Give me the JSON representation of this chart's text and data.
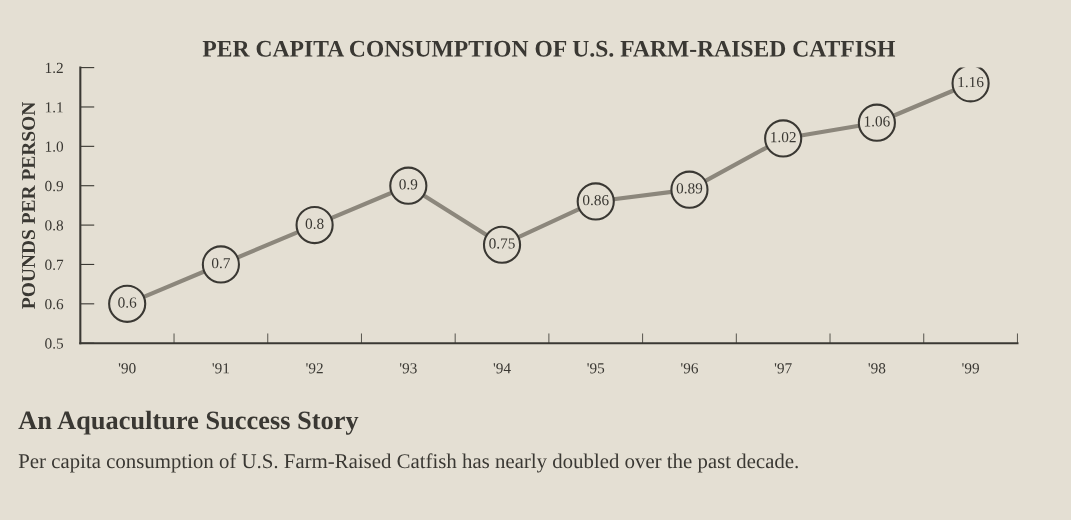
{
  "chart_data": {
    "type": "line",
    "title": "PER CAPITA CONSUMPTION OF U.S. FARM-RAISED CATFISH",
    "ylabel": "POUNDS PER PERSON",
    "categories": [
      "'90",
      "'91",
      "'92",
      "'93",
      "'94",
      "'95",
      "'96",
      "'97",
      "'98",
      "'99"
    ],
    "values": [
      0.6,
      0.7,
      0.8,
      0.9,
      0.75,
      0.86,
      0.89,
      1.02,
      1.06,
      1.16
    ],
    "color": "#8c877c",
    "marker": "circle",
    "data_labels": true,
    "ylim": [
      0.5,
      1.2
    ],
    "yticks": [
      {
        "value": 0.5,
        "label": "0.5"
      },
      {
        "value": 0.6,
        "label": "0.6"
      },
      {
        "value": 0.7,
        "label": "0.7"
      },
      {
        "value": 0.8,
        "label": "0.8"
      },
      {
        "value": 0.9,
        "label": "0.9"
      },
      {
        "value": 1.0,
        "label": "1.0"
      },
      {
        "value": 1.1,
        "label": "1.1"
      },
      {
        "value": 1.2,
        "label": "1.2"
      }
    ],
    "grid": false,
    "legend": false,
    "annotations": [
      "An Aquaculture Success Story",
      "Per capita consumption of U.S. Farm-Raised Catfish has nearly doubled over the past decade."
    ]
  }
}
